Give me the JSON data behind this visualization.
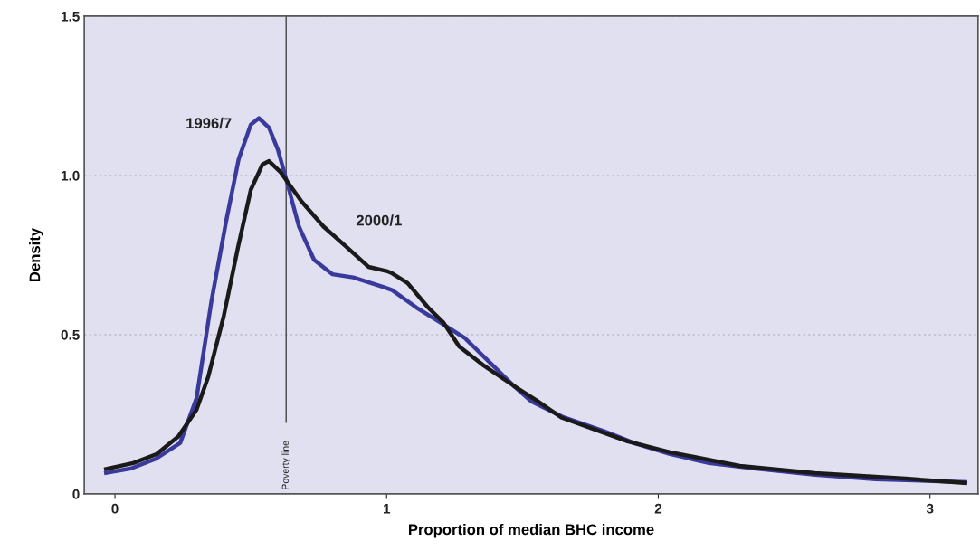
{
  "chart_data": {
    "type": "line",
    "xlabel": "Proportion of median BHC income",
    "ylabel": "Density",
    "xlim": [
      -0.113,
      3.177
    ],
    "ylim": [
      0,
      1.5
    ],
    "xticks": [
      0,
      1,
      2,
      3
    ],
    "yticks": [
      0,
      {
        "value": 0.5,
        "label": "0.5"
      },
      {
        "value": 1.0,
        "label": "1.0"
      },
      {
        "value": 1.5,
        "label": "1.5"
      }
    ],
    "grid": "y",
    "legend": false,
    "ref_lines": [
      {
        "axis": "x",
        "value": 0.63,
        "label": "Poverty line",
        "color": "#333333"
      }
    ],
    "series": [
      {
        "name": "1996/7",
        "color": "#3a3a9c",
        "x": [
          -0.04,
          0.06,
          0.15,
          0.24,
          0.3,
          0.355,
          0.41,
          0.455,
          0.5,
          0.53,
          0.567,
          0.6,
          0.633,
          0.677,
          0.733,
          0.8,
          0.877,
          0.987,
          1.02,
          1.11,
          1.2,
          1.287,
          1.377,
          1.467,
          1.533,
          1.653,
          1.8,
          1.91,
          2.043,
          2.187,
          2.353,
          2.577,
          2.8,
          3.137
        ],
        "values": [
          0.065,
          0.08,
          0.11,
          0.16,
          0.3,
          0.605,
          0.86,
          1.05,
          1.16,
          1.18,
          1.15,
          1.08,
          0.98,
          0.84,
          0.735,
          0.69,
          0.68,
          0.65,
          0.64,
          0.585,
          0.537,
          0.49,
          0.415,
          0.34,
          0.29,
          0.24,
          0.197,
          0.16,
          0.125,
          0.097,
          0.08,
          0.06,
          0.046,
          0.037
        ]
      },
      {
        "name": "2000/1",
        "color": "#1a1a1a",
        "x": [
          -0.04,
          0.067,
          0.153,
          0.233,
          0.3,
          0.343,
          0.4,
          0.453,
          0.5,
          0.543,
          0.567,
          0.61,
          0.687,
          0.767,
          0.853,
          0.933,
          1.0,
          1.02,
          1.077,
          1.153,
          1.21,
          1.267,
          1.353,
          1.467,
          1.553,
          1.643,
          1.887,
          2.043,
          2.3,
          2.577,
          2.91,
          3.137
        ],
        "values": [
          0.077,
          0.097,
          0.125,
          0.18,
          0.264,
          0.367,
          0.557,
          0.775,
          0.955,
          1.035,
          1.045,
          1.01,
          0.918,
          0.84,
          0.775,
          0.713,
          0.7,
          0.693,
          0.662,
          0.585,
          0.537,
          0.463,
          0.406,
          0.34,
          0.293,
          0.24,
          0.165,
          0.131,
          0.088,
          0.065,
          0.048,
          0.034
        ]
      }
    ]
  }
}
